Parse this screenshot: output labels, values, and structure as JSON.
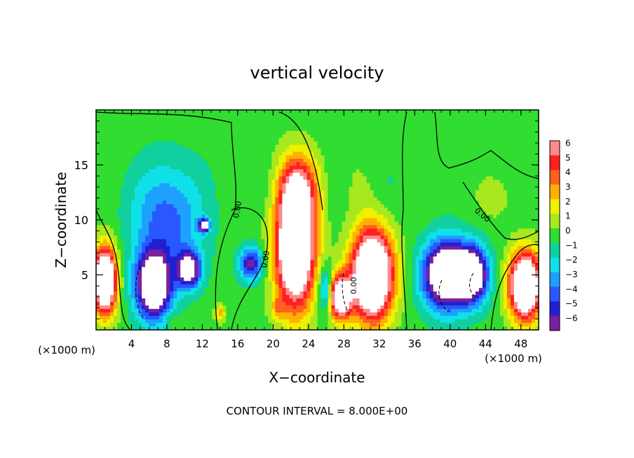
{
  "chart_data": {
    "type": "heatmap",
    "title": "vertical velocity",
    "xlabel": "X−coordinate",
    "ylabel": "Z−coordinate",
    "x_unit_label_left": "(×1000 m)",
    "x_unit_label_right": "(×1000 m)",
    "footer": "CONTOUR INTERVAL = 8.000E+00",
    "xlim": [
      0,
      50
    ],
    "ylim": [
      0,
      20
    ],
    "x_ticks": [
      4,
      8,
      12,
      16,
      20,
      24,
      28,
      32,
      36,
      40,
      44,
      48
    ],
    "x_tick_labels": [
      "4",
      "8",
      "12",
      "16",
      "20",
      "24",
      "28",
      "32",
      "36",
      "40",
      "44",
      "48"
    ],
    "y_ticks": [
      5,
      10,
      15
    ],
    "y_tick_labels": [
      "5",
      "10",
      "15"
    ],
    "colorbar": {
      "min": -6,
      "max": 6,
      "ticks": [
        6,
        5,
        4,
        3,
        2,
        1,
        0,
        -1,
        -2,
        -3,
        -4,
        -5,
        -6
      ],
      "tick_labels": [
        "6",
        "5",
        "4",
        "3",
        "2",
        "1",
        "0",
        "−1",
        "−2",
        "−3",
        "−4",
        "−5",
        "−6"
      ],
      "colors": [
        "#7a1fa0",
        "#2020d0",
        "#2a58ff",
        "#1ea0ff",
        "#10e0e8",
        "#10d0a0",
        "#30dd30",
        "#a8e81e",
        "#f0f000",
        "#ffb000",
        "#ff6020",
        "#ff2020",
        "#ff8a8a"
      ]
    },
    "contour_labels": [
      "0.00",
      "0.00",
      "0.00",
      "0.00"
    ],
    "features": [
      {
        "kind": "updraft",
        "x": 1,
        "z": 4.5,
        "sx": 1.3,
        "sz": 3,
        "w": 12
      },
      {
        "kind": "downdraft",
        "x": 8,
        "z": 10,
        "sx": 4,
        "sz": 5,
        "w": -4
      },
      {
        "kind": "downdraft",
        "x": 6.5,
        "z": 4,
        "sx": 2,
        "sz": 3,
        "w": -10
      },
      {
        "kind": "downdraft",
        "x": 10.5,
        "z": 5.5,
        "sx": 1.3,
        "sz": 1.6,
        "w": -8
      },
      {
        "kind": "downdraft",
        "x": 12.2,
        "z": 9.5,
        "sx": 0.6,
        "sz": 0.6,
        "w": -8
      },
      {
        "kind": "downdraft",
        "x": 17.5,
        "z": 6,
        "sx": 1.3,
        "sz": 1.5,
        "w": -6
      },
      {
        "kind": "updraft",
        "x": 22.5,
        "z": 7.5,
        "sx": 2.2,
        "sz": 5.5,
        "w": 12
      },
      {
        "kind": "updraft",
        "x": 23,
        "z": 13,
        "sx": 2.5,
        "sz": 3,
        "w": 4
      },
      {
        "kind": "updraft",
        "x": 31.2,
        "z": 5,
        "sx": 2.3,
        "sz": 4,
        "w": 13
      },
      {
        "kind": "updraft",
        "x": 27.5,
        "z": 3,
        "sx": 1.3,
        "sz": 2,
        "w": 10
      },
      {
        "kind": "downdraft",
        "x": 26,
        "z": 3.5,
        "sx": 0.8,
        "sz": 2,
        "w": -5
      },
      {
        "kind": "downdraft",
        "x": 39.5,
        "z": 5,
        "sx": 2.5,
        "sz": 3,
        "w": -11
      },
      {
        "kind": "downdraft",
        "x": 42.5,
        "z": 5,
        "sx": 1.8,
        "sz": 2.5,
        "w": -9
      },
      {
        "kind": "updraft",
        "x": 48.5,
        "z": 4,
        "sx": 1.8,
        "sz": 3,
        "w": 12
      },
      {
        "kind": "updraft",
        "x": 14,
        "z": 1.5,
        "sx": 0.6,
        "sz": 0.8,
        "w": 3
      },
      {
        "kind": "updraft",
        "x": 20.5,
        "z": 2,
        "sx": 0.8,
        "sz": 1,
        "w": 2
      },
      {
        "kind": "updraft",
        "x": 8.5,
        "z": 1,
        "sx": 0.8,
        "sz": 0.8,
        "w": 1
      },
      {
        "kind": "updraft",
        "x": 45,
        "z": 12,
        "sx": 2,
        "sz": 2,
        "w": 1
      }
    ]
  }
}
